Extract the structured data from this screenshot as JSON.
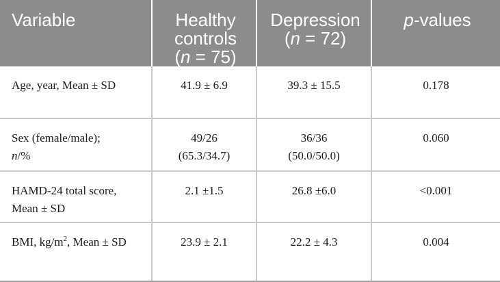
{
  "header": {
    "variable": "Variable",
    "healthy_line1": "Healthy",
    "healthy_line2": "controls",
    "healthy_n_prefix": "(",
    "healthy_n_var": "n",
    "healthy_n_suffix": " = 75)",
    "depression_line1": "Depression",
    "depression_n_prefix": "(",
    "depression_n_var": "n",
    "depression_n_suffix": " = 72)",
    "pvalue_var": "p",
    "pvalue_suffix": "-values"
  },
  "rows": [
    {
      "variable": "Age, year, Mean ± SD",
      "healthy": "41.9 ± 6.9",
      "depression": "39.3 ± 15.5",
      "p": "0.178"
    },
    {
      "variable_pre": "Sex (female/male);",
      "variable_n": "n",
      "variable_post": "/%",
      "healthy_line1": "49/26",
      "healthy_line2": "(65.3/34.7)",
      "depression_line1": "36/36",
      "depression_line2": "(50.0/50.0)",
      "p": "0.060"
    },
    {
      "variable": "HAMD-24 total score, Mean ± SD",
      "healthy": "2.1 ±1.5",
      "depression": "26.8 ±6.0",
      "p": "<0.001"
    },
    {
      "variable_pre": "BMI, kg/m",
      "variable_sup": "2",
      "variable_post": ", Mean ± SD",
      "healthy": "23.9 ± 2.1",
      "depression": "22.2 ± 4.3",
      "p": "0.004"
    }
  ]
}
